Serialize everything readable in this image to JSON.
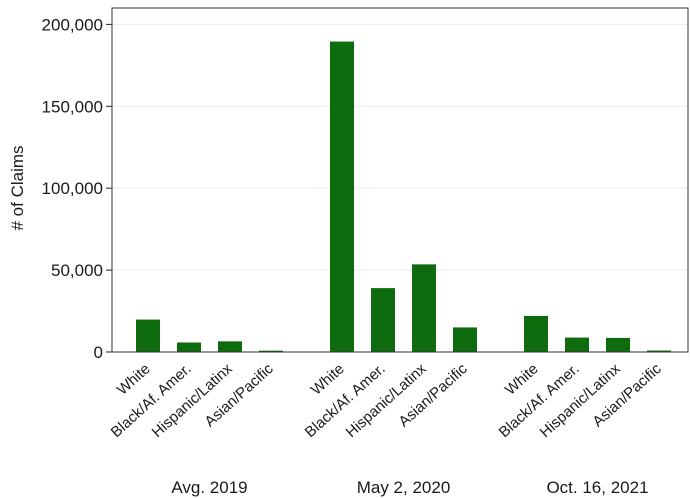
{
  "chart_data": {
    "type": "bar",
    "title": "",
    "ylabel": "# of Claims",
    "xlabel": "",
    "ylim": [
      0,
      210000
    ],
    "yticks": [
      0,
      50000,
      100000,
      150000,
      200000
    ],
    "ytick_labels": [
      "0",
      "50,000",
      "100,000",
      "150,000",
      "200,000"
    ],
    "grid": true,
    "bar_color": "#0e6b0e",
    "groups": [
      {
        "label": "Avg. 2019",
        "categories": [
          "White",
          "Black/Af. Amer.",
          "Hispanic/Latinx",
          "Asian/Pacific"
        ],
        "values": [
          19800,
          5800,
          6500,
          800
        ]
      },
      {
        "label": "May 2, 2020",
        "categories": [
          "White",
          "Black/Af. Amer.",
          "Hispanic/Latinx",
          "Asian/Pacific"
        ],
        "values": [
          189500,
          39000,
          53500,
          15000
        ]
      },
      {
        "label": "Oct. 16, 2021",
        "categories": [
          "White",
          "Black/Af. Amer.",
          "Hispanic/Latinx",
          "Asian/Pacific"
        ],
        "values": [
          22000,
          8800,
          8600,
          900
        ]
      }
    ]
  }
}
